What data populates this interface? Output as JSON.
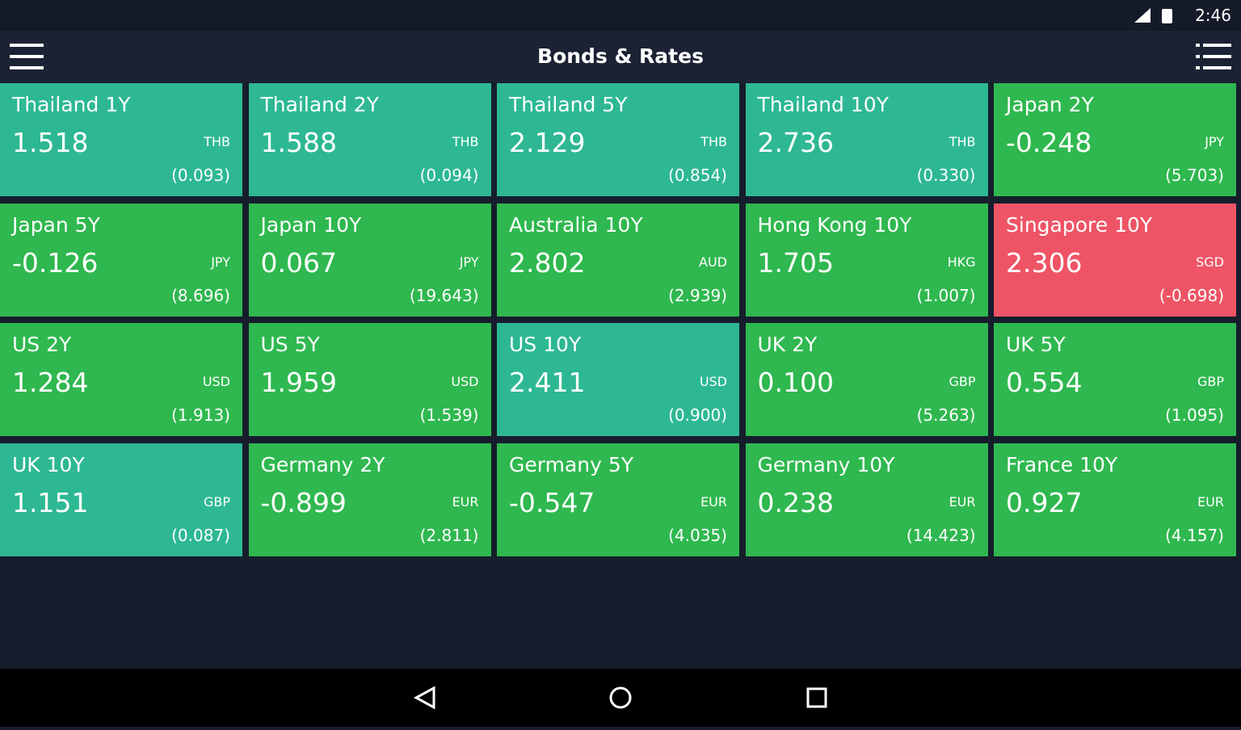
{
  "status_bar": {
    "time": "2:46"
  },
  "header": {
    "title": "Bonds & Rates"
  },
  "tiles": [
    {
      "name": "Thailand 1Y",
      "value": "1.518",
      "currency": "THB",
      "change": "(0.093)",
      "color": "#2db893"
    },
    {
      "name": "Thailand 2Y",
      "value": "1.588",
      "currency": "THB",
      "change": "(0.094)",
      "color": "#2db893"
    },
    {
      "name": "Thailand 5Y",
      "value": "2.129",
      "currency": "THB",
      "change": "(0.854)",
      "color": "#2db893"
    },
    {
      "name": "Thailand 10Y",
      "value": "2.736",
      "currency": "THB",
      "change": "(0.330)",
      "color": "#2db893"
    },
    {
      "name": "Japan 2Y",
      "value": "-0.248",
      "currency": "JPY",
      "change": "(5.703)",
      "color": "#2fb84f"
    },
    {
      "name": "Japan 5Y",
      "value": "-0.126",
      "currency": "JPY",
      "change": "(8.696)",
      "color": "#2fb84f"
    },
    {
      "name": "Japan 10Y",
      "value": "0.067",
      "currency": "JPY",
      "change": "(19.643)",
      "color": "#2fb84f"
    },
    {
      "name": "Australia 10Y",
      "value": "2.802",
      "currency": "AUD",
      "change": "(2.939)",
      "color": "#2fb84f"
    },
    {
      "name": "Hong Kong 10Y",
      "value": "1.705",
      "currency": "HKG",
      "change": "(1.007)",
      "color": "#2fb84f"
    },
    {
      "name": "Singapore 10Y",
      "value": "2.306",
      "currency": "SGD",
      "change": "(-0.698)",
      "color": "#ee5465"
    },
    {
      "name": "US 2Y",
      "value": "1.284",
      "currency": "USD",
      "change": "(1.913)",
      "color": "#2fb84f"
    },
    {
      "name": "US 5Y",
      "value": "1.959",
      "currency": "USD",
      "change": "(1.539)",
      "color": "#2fb84f"
    },
    {
      "name": "US 10Y",
      "value": "2.411",
      "currency": "USD",
      "change": "(0.900)",
      "color": "#2db893"
    },
    {
      "name": "UK 2Y",
      "value": "0.100",
      "currency": "GBP",
      "change": "(5.263)",
      "color": "#2fb84f"
    },
    {
      "name": "UK 5Y",
      "value": "0.554",
      "currency": "GBP",
      "change": "(1.095)",
      "color": "#2fb84f"
    },
    {
      "name": "UK 10Y",
      "value": "1.151",
      "currency": "GBP",
      "change": "(0.087)",
      "color": "#2db893"
    },
    {
      "name": "Germany 2Y",
      "value": "-0.899",
      "currency": "EUR",
      "change": "(2.811)",
      "color": "#2fb84f"
    },
    {
      "name": "Germany 5Y",
      "value": "-0.547",
      "currency": "EUR",
      "change": "(4.035)",
      "color": "#2fb84f"
    },
    {
      "name": "Germany 10Y",
      "value": "0.238",
      "currency": "EUR",
      "change": "(14.423)",
      "color": "#2fb84f"
    },
    {
      "name": "France 10Y",
      "value": "0.927",
      "currency": "EUR",
      "change": "(4.157)",
      "color": "#2fb84f"
    }
  ]
}
